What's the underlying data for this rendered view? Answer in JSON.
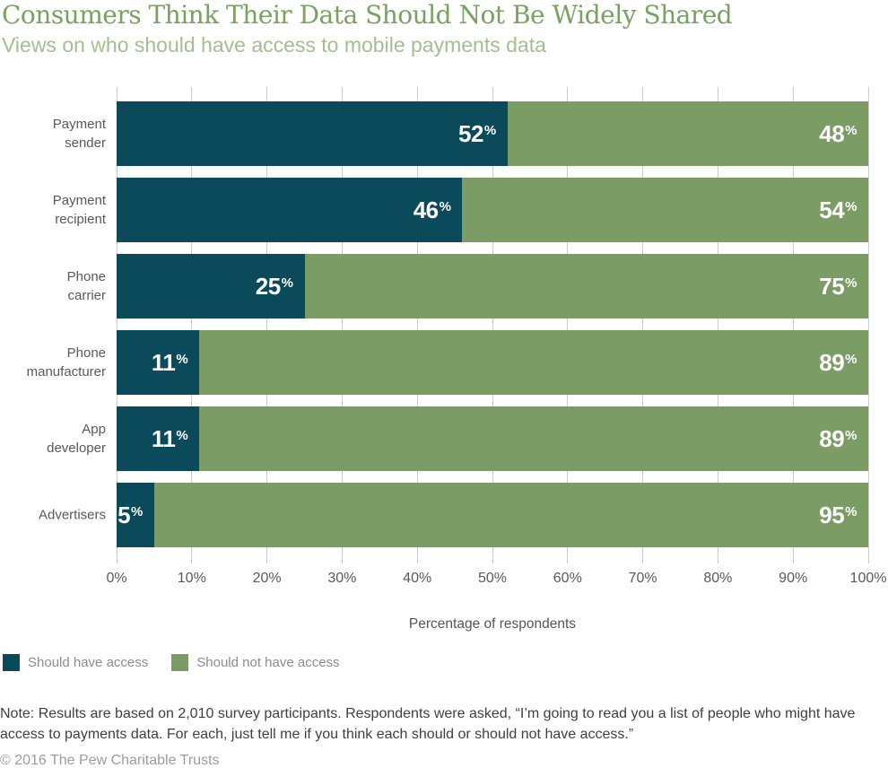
{
  "header": {
    "title": "Consumers Think Their Data Should Not Be Widely Shared",
    "subtitle": "Views on who should have access to mobile payments data"
  },
  "chart_data": {
    "type": "bar",
    "orientation": "horizontal",
    "stacked": true,
    "title": "Consumers Think Their Data Should Not Be Widely Shared",
    "subtitle": "Views on who should have access to mobile payments data",
    "categories": [
      "Payment sender",
      "Payment recipient",
      "Phone carrier",
      "Phone manufacturer",
      "App developer",
      "Advertisers"
    ],
    "series": [
      {
        "name": "Should have access",
        "color": "#0b4a5b",
        "values": [
          52,
          46,
          25,
          11,
          11,
          5
        ]
      },
      {
        "name": "Should not have access",
        "color": "#7b9c64",
        "values": [
          48,
          54,
          75,
          89,
          89,
          95
        ]
      }
    ],
    "xlabel": "Percentage of respondents",
    "xlim": [
      0,
      100
    ],
    "x_ticks": [
      "0%",
      "10%",
      "20%",
      "30%",
      "40%",
      "50%",
      "60%",
      "70%",
      "80%",
      "90%",
      "100%"
    ],
    "grid": "vertical-gridlines",
    "legend_position": "bottom-left",
    "value_label_suffix": "%"
  },
  "rows": [
    {
      "label": "Payment\nsender",
      "v1": "52",
      "v2": "48",
      "w1": 52
    },
    {
      "label": "Payment\nrecipient",
      "v1": "46",
      "v2": "54",
      "w1": 46
    },
    {
      "label": "Phone carrier",
      "v1": "25",
      "v2": "75",
      "w1": 25
    },
    {
      "label": "Phone\nmanufacturer",
      "v1": "11",
      "v2": "89",
      "w1": 11
    },
    {
      "label": "App developer",
      "v1": "11",
      "v2": "89",
      "w1": 11
    },
    {
      "label": "Advertisers",
      "v1": "5",
      "v2": "95",
      "w1": 5
    }
  ],
  "legend": {
    "items": [
      {
        "label": "Should have access",
        "color": "#0b4a5b"
      },
      {
        "label": "Should not have access",
        "color": "#7b9c64"
      }
    ]
  },
  "note": "Note: Results are based on 2,010 survey participants. Respondents were asked, “I’m going to read you a list of people who might have access to payments data. For each, just tell me if you think each should or should not have access.”",
  "footer": "© 2016 The Pew Charitable Trusts"
}
